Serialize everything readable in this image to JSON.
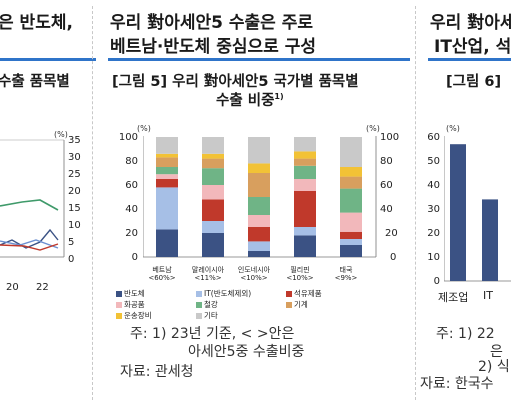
{
  "left_panel": {
    "header_line1": "은 반도체,",
    "figure_title": "수출 품목별",
    "y_unit": "(%)",
    "y_ticks": [
      "35",
      "30",
      "25",
      "20",
      "15",
      "10",
      "5",
      "0"
    ],
    "x_ticks": [
      "20",
      "22"
    ]
  },
  "middle_panel": {
    "header_line1": "우리 對아세안5 수출은 주로",
    "header_line2": "베트남·반도체 중심으로 구성",
    "figure_title_line1": "[그림 5] 우리 對아세안5 국가별 품목별",
    "figure_title_line2": "수출 비중",
    "figure_title_sup": "1)",
    "unit_left": "(%)",
    "unit_right": "(%)",
    "y_ticks": [
      "100",
      "80",
      "60",
      "40",
      "20",
      "0"
    ],
    "note_line1": "주: 1) 23년 기준, < >안은",
    "note_line2": "아세안5중 수출비중",
    "source": "자료: 관세청"
  },
  "right_panel": {
    "header_line1": "우리 對아세안",
    "header_line2": "IT산업, 석",
    "figure_title": "[그림 6]",
    "y_unit": "(%)",
    "y_ticks": [
      "60",
      "50",
      "40",
      "30",
      "20",
      "10",
      "0"
    ],
    "categories": [
      "제조업",
      "IT"
    ],
    "note_line1": "주: 1) 22",
    "note_line2": "은",
    "note_line3": "2) 식",
    "source": "자료: 한국수"
  },
  "chart_data": [
    {
      "type": "bar",
      "stacked": true,
      "categories": [
        {
          "name": "베트남",
          "share": "<60%>"
        },
        {
          "name": "말레이시아",
          "share": "<11%>"
        },
        {
          "name": "인도네시아",
          "share": "<10%>"
        },
        {
          "name": "필리핀",
          "share": "<10%>"
        },
        {
          "name": "태국",
          "share": "<9%>"
        }
      ],
      "series": [
        {
          "name": "반도체",
          "color": "#3b5284",
          "values": [
            23,
            20,
            5,
            18,
            10
          ]
        },
        {
          "name": "IT(반도체제외)",
          "color": "#a6bfe6",
          "values": [
            35,
            10,
            8,
            7,
            5
          ]
        },
        {
          "name": "석유제품",
          "color": "#c0392b",
          "values": [
            7,
            18,
            12,
            30,
            6
          ]
        },
        {
          "name": "화공품",
          "color": "#f2b8bb",
          "values": [
            4,
            12,
            10,
            10,
            16
          ]
        },
        {
          "name": "철강",
          "color": "#6fb486",
          "values": [
            6,
            14,
            15,
            11,
            20
          ]
        },
        {
          "name": "기계",
          "color": "#d89f5e",
          "values": [
            8,
            8,
            20,
            6,
            10
          ]
        },
        {
          "name": "운송장비",
          "color": "#f2c236",
          "values": [
            3,
            4,
            8,
            6,
            8
          ]
        },
        {
          "name": "기타",
          "color": "#c9c9c9",
          "values": [
            14,
            14,
            22,
            12,
            25
          ]
        }
      ],
      "ylim": [
        0,
        100
      ]
    },
    {
      "type": "bar",
      "categories": [
        "제조업",
        "IT"
      ],
      "values": [
        57,
        34
      ],
      "ylim": [
        0,
        60
      ]
    }
  ]
}
